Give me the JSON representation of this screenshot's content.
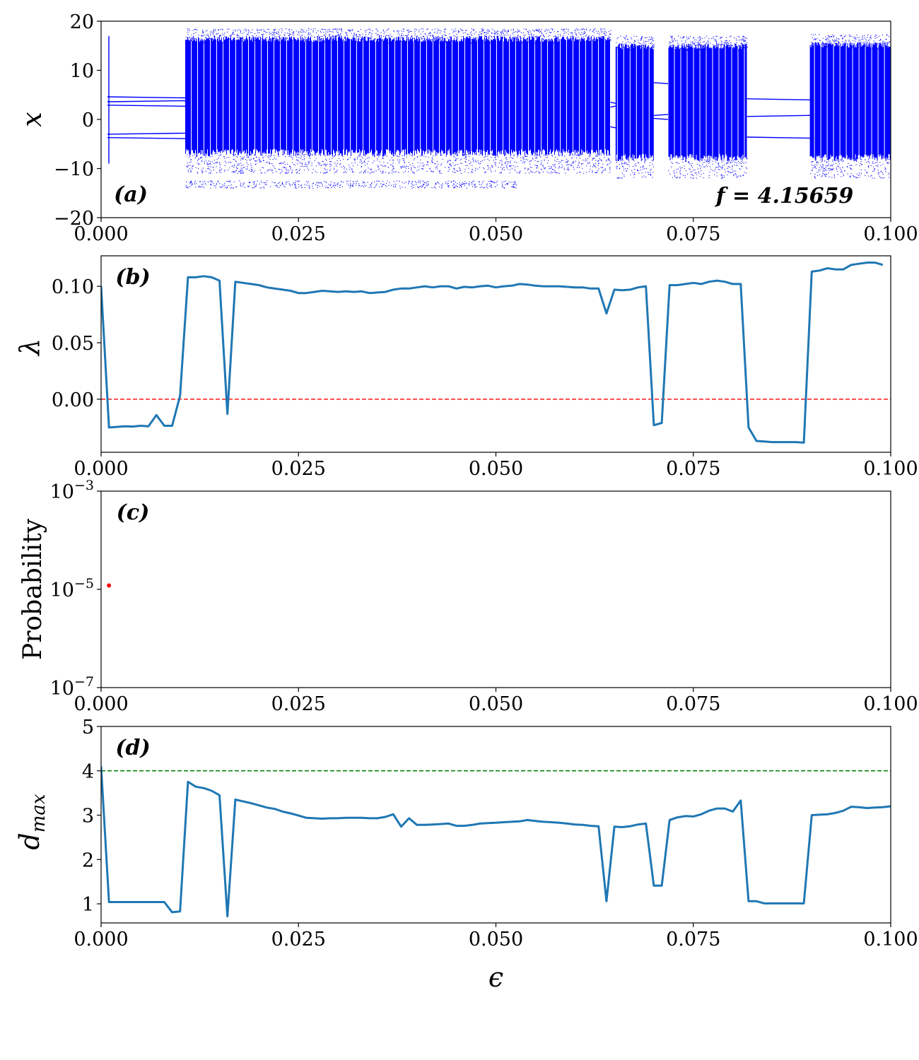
{
  "chart_data": [
    {
      "type": "scatter",
      "panel_label": "(a)",
      "annotation": "f = 4.15659",
      "xlabel": "",
      "ylabel": "x",
      "xlim": [
        0.0,
        0.1
      ],
      "ylim": [
        -20,
        20
      ],
      "x_ticks": [
        0.0,
        0.025,
        0.05,
        0.075,
        0.1
      ],
      "x_tick_labels": [
        "0.000",
        "0.025",
        "0.050",
        "0.075",
        "0.100"
      ],
      "y_ticks": [
        -20,
        -10,
        0,
        10,
        20
      ],
      "y_tick_labels": [
        "−20",
        "−10",
        "0",
        "10",
        "20"
      ],
      "point_color": "#0000ff",
      "periodic_windows": [
        {
          "x_start": 0.0008,
          "x_end": 0.0107,
          "branches": [
            4.6,
            3.6,
            2.9,
            -3.0,
            -3.7
          ]
        },
        {
          "x_start": 0.0645,
          "x_end": 0.0652,
          "branches": [
            3.5,
            2.5,
            -1.5
          ]
        },
        {
          "x_start": 0.07,
          "x_end": 0.0718,
          "branches": [
            7.5,
            0.8,
            0.2
          ]
        },
        {
          "x_start": 0.0818,
          "x_end": 0.0898,
          "branches": [
            4.2,
            0.6,
            -3.6
          ]
        }
      ],
      "chaotic_bands": [
        {
          "x_start": 0.0107,
          "x_end": 0.0645,
          "x_min": -10.0,
          "x_max": 17.0
        },
        {
          "x_start": 0.0652,
          "x_end": 0.07,
          "x_min": -11.0,
          "x_max": 15.5
        },
        {
          "x_start": 0.0718,
          "x_end": 0.0818,
          "x_min": -11.0,
          "x_max": 15.5
        },
        {
          "x_start": 0.0898,
          "x_end": 0.1,
          "x_min": -11.0,
          "x_max": 15.8
        }
      ]
    },
    {
      "type": "line",
      "panel_label": "(b)",
      "xlabel": "",
      "ylabel": "λ",
      "xlim": [
        0.0,
        0.1
      ],
      "ylim": [
        -0.047,
        0.127
      ],
      "x_ticks": [
        0.0,
        0.025,
        0.05,
        0.075,
        0.1
      ],
      "x_tick_labels": [
        "0.000",
        "0.025",
        "0.050",
        "0.075",
        "0.100"
      ],
      "y_ticks": [
        0.0,
        0.05,
        0.1
      ],
      "y_tick_labels": [
        "0.00",
        "0.05",
        "0.10"
      ],
      "line_color": "#1f77b4",
      "reference_line": {
        "y": 0.0,
        "color": "#ff0000",
        "style": "dashed"
      },
      "x": [
        0.0,
        0.001,
        0.002,
        0.003,
        0.004,
        0.005,
        0.006,
        0.007,
        0.008,
        0.009,
        0.01,
        0.011,
        0.012,
        0.013,
        0.014,
        0.015,
        0.016,
        0.017,
        0.018,
        0.019,
        0.02,
        0.021,
        0.022,
        0.023,
        0.024,
        0.025,
        0.026,
        0.027,
        0.028,
        0.029,
        0.03,
        0.031,
        0.032,
        0.033,
        0.034,
        0.035,
        0.036,
        0.037,
        0.038,
        0.039,
        0.04,
        0.041,
        0.042,
        0.043,
        0.044,
        0.045,
        0.046,
        0.047,
        0.048,
        0.049,
        0.05,
        0.051,
        0.052,
        0.053,
        0.054,
        0.055,
        0.056,
        0.057,
        0.058,
        0.059,
        0.06,
        0.061,
        0.062,
        0.063,
        0.064,
        0.065,
        0.066,
        0.067,
        0.068,
        0.069,
        0.07,
        0.071,
        0.072,
        0.073,
        0.074,
        0.075,
        0.076,
        0.077,
        0.078,
        0.079,
        0.08,
        0.081,
        0.082,
        0.083,
        0.084,
        0.085,
        0.086,
        0.087,
        0.088,
        0.089,
        0.09,
        0.091,
        0.092,
        0.093,
        0.094,
        0.095,
        0.096,
        0.097,
        0.098,
        0.099
      ],
      "y": [
        0.1,
        -0.025,
        -0.0245,
        -0.024,
        -0.0242,
        -0.0235,
        -0.024,
        -0.014,
        -0.0235,
        -0.0235,
        0.003,
        0.108,
        0.108,
        0.109,
        0.108,
        0.105,
        -0.013,
        0.104,
        0.103,
        0.102,
        0.101,
        0.099,
        0.098,
        0.097,
        0.096,
        0.094,
        0.094,
        0.095,
        0.096,
        0.0955,
        0.095,
        0.0955,
        0.095,
        0.0955,
        0.094,
        0.0945,
        0.095,
        0.097,
        0.098,
        0.098,
        0.099,
        0.1,
        0.099,
        0.1,
        0.1,
        0.098,
        0.0995,
        0.099,
        0.1,
        0.1005,
        0.099,
        0.1,
        0.1005,
        0.102,
        0.1015,
        0.1005,
        0.1,
        0.1,
        0.1,
        0.0995,
        0.099,
        0.099,
        0.098,
        0.098,
        0.076,
        0.097,
        0.0965,
        0.097,
        0.099,
        0.1,
        -0.023,
        -0.021,
        0.101,
        0.101,
        0.102,
        0.103,
        0.102,
        0.104,
        0.105,
        0.104,
        0.102,
        0.102,
        -0.025,
        -0.037,
        -0.0375,
        -0.038,
        -0.038,
        -0.038,
        -0.038,
        -0.0385,
        0.113,
        0.114,
        0.116,
        0.115,
        0.115,
        0.119,
        0.12,
        0.121,
        0.121,
        0.119
      ]
    },
    {
      "type": "scatter",
      "panel_label": "(c)",
      "xlabel": "",
      "ylabel": "Probability",
      "xlim": [
        0.0,
        0.1
      ],
      "ylim": [
        1e-07,
        0.001
      ],
      "y_scale": "log",
      "x_ticks": [
        0.0,
        0.025,
        0.05,
        0.075,
        0.1
      ],
      "x_tick_labels": [
        "0.000",
        "0.025",
        "0.050",
        "0.075",
        "0.100"
      ],
      "y_ticks": [
        1e-07,
        1e-05,
        0.001
      ],
      "y_tick_labels": [
        {
          "base": "10",
          "exp": "−7"
        },
        {
          "base": "10",
          "exp": "−5"
        },
        {
          "base": "10",
          "exp": "−3"
        }
      ],
      "point_color": "#ff0000",
      "points": [
        {
          "x": 0.001,
          "y": 1.2e-05
        }
      ]
    },
    {
      "type": "line",
      "panel_label": "(d)",
      "xlabel": "ϵ",
      "ylabel": "dmax",
      "ylabel_base": "d",
      "ylabel_sub": "max",
      "xlim": [
        0.0,
        0.1
      ],
      "ylim": [
        0.57,
        5.0
      ],
      "x_ticks": [
        0.0,
        0.025,
        0.05,
        0.075,
        0.1
      ],
      "x_tick_labels": [
        "0.000",
        "0.025",
        "0.050",
        "0.075",
        "0.100"
      ],
      "y_ticks": [
        1,
        2,
        3,
        4,
        5
      ],
      "y_tick_labels": [
        "1",
        "2",
        "3",
        "4",
        "5"
      ],
      "line_color": "#1f77b4",
      "reference_line": {
        "y": 4.0,
        "color": "#008000",
        "style": "dashed"
      },
      "x": [
        0.0,
        0.001,
        0.002,
        0.003,
        0.004,
        0.005,
        0.006,
        0.007,
        0.008,
        0.009,
        0.01,
        0.011,
        0.012,
        0.013,
        0.014,
        0.015,
        0.016,
        0.017,
        0.018,
        0.019,
        0.02,
        0.021,
        0.022,
        0.023,
        0.024,
        0.025,
        0.026,
        0.027,
        0.028,
        0.029,
        0.03,
        0.031,
        0.032,
        0.033,
        0.034,
        0.035,
        0.036,
        0.037,
        0.038,
        0.039,
        0.04,
        0.041,
        0.042,
        0.043,
        0.044,
        0.045,
        0.046,
        0.047,
        0.048,
        0.049,
        0.05,
        0.051,
        0.052,
        0.053,
        0.054,
        0.055,
        0.056,
        0.057,
        0.058,
        0.059,
        0.06,
        0.061,
        0.062,
        0.063,
        0.064,
        0.065,
        0.066,
        0.067,
        0.068,
        0.069,
        0.07,
        0.071,
        0.072,
        0.073,
        0.074,
        0.075,
        0.076,
        0.077,
        0.078,
        0.079,
        0.08,
        0.081,
        0.082,
        0.083,
        0.084,
        0.085,
        0.086,
        0.087,
        0.088,
        0.089,
        0.09,
        0.091,
        0.092,
        0.093,
        0.094,
        0.095,
        0.096,
        0.097,
        0.098,
        0.099,
        0.1
      ],
      "y": [
        4.1,
        1.04,
        1.04,
        1.04,
        1.04,
        1.04,
        1.04,
        1.04,
        1.04,
        0.81,
        0.83,
        3.75,
        3.64,
        3.61,
        3.55,
        3.45,
        0.72,
        3.35,
        3.31,
        3.27,
        3.22,
        3.17,
        3.14,
        3.08,
        3.04,
        2.99,
        2.94,
        2.93,
        2.92,
        2.93,
        2.93,
        2.94,
        2.94,
        2.94,
        2.93,
        2.93,
        2.96,
        3.02,
        2.74,
        2.93,
        2.78,
        2.78,
        2.79,
        2.8,
        2.81,
        2.76,
        2.76,
        2.78,
        2.81,
        2.82,
        2.83,
        2.84,
        2.85,
        2.86,
        2.89,
        2.87,
        2.85,
        2.84,
        2.83,
        2.81,
        2.79,
        2.78,
        2.76,
        2.75,
        1.06,
        2.74,
        2.73,
        2.75,
        2.79,
        2.81,
        1.41,
        1.41,
        2.89,
        2.95,
        2.98,
        2.97,
        3.02,
        3.1,
        3.15,
        3.15,
        3.08,
        3.33,
        1.06,
        1.06,
        1.01,
        1.01,
        1.01,
        1.01,
        1.01,
        1.01,
        3.0,
        3.01,
        3.02,
        3.05,
        3.1,
        3.19,
        3.18,
        3.16,
        3.17,
        3.18,
        3.2
      ]
    }
  ]
}
